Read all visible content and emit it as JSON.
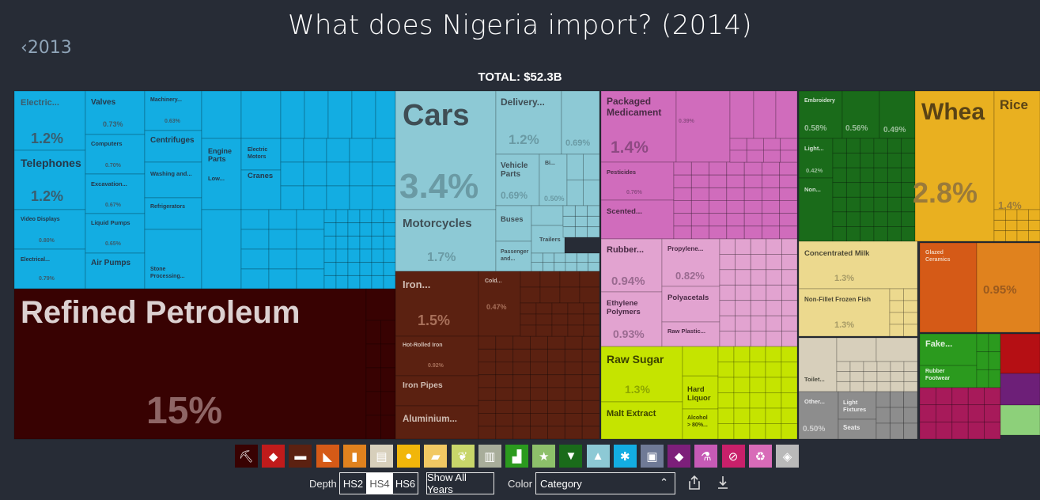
{
  "title": "What does Nigeria import? (2014)",
  "prev_year": "2013",
  "total": "TOTAL: $52.3B",
  "chart_data": {
    "type": "treemap",
    "title": "What does Nigeria import? (2014)",
    "total": "$52.3B",
    "blocks": [
      {
        "name": "Refined Petroleum",
        "share": "15%",
        "color": "#380202"
      },
      {
        "name": "Cars",
        "share": "3.4%",
        "color": "#8dc9d5"
      },
      {
        "name": "Wheat",
        "share": "2.8%",
        "color": "#e9b020"
      },
      {
        "name": "Motorcycles",
        "share": "1.7%",
        "color": "#8dc9d5"
      },
      {
        "name": "Iron Reinforcing Bars",
        "share": "1.5%",
        "color": "#5b2111"
      },
      {
        "name": "Packaged Medicaments",
        "share": "1.4%",
        "color": "#d06cbc"
      },
      {
        "name": "Rice",
        "share": "1.4%",
        "color": "#e9b020"
      },
      {
        "name": "Raw Sugar",
        "share": "1.3%",
        "color": "#c5e400"
      },
      {
        "name": "Concentrated Milk",
        "share": "1.3%",
        "color": "#ecd98e"
      },
      {
        "name": "Non-Fillet Frozen Fish",
        "share": "1.3%",
        "color": "#ecd98e"
      },
      {
        "name": "Electrical Transformers",
        "share": "1.2%",
        "color": "#13ade2"
      },
      {
        "name": "Telephones",
        "share": "1.2%",
        "color": "#13ade2"
      },
      {
        "name": "Delivery Trucks",
        "share": "1.2%",
        "color": "#8dc9d5"
      }
    ],
    "tiles": {
      "electric": {
        "label": "Electric...",
        "value": "1.2%"
      },
      "telephones": {
        "label": "Telephones",
        "value": "1.2%"
      },
      "video_displays": {
        "label": "Video Displays",
        "value": "0.80%"
      },
      "electrical2": {
        "label": "Electrical...",
        "value": "0.79%"
      },
      "valves": {
        "label": "Valves",
        "value": "0.73%"
      },
      "computers": {
        "label": "Computers",
        "value": "0.70%"
      },
      "excavation": {
        "label": "Excavation...",
        "value": "0.67%"
      },
      "liquid_pumps": {
        "label": "Liquid Pumps",
        "value": "0.65%"
      },
      "air_pumps": {
        "label": "Air Pumps"
      },
      "machinery": {
        "label": "Machinery...",
        "value": "0.63%"
      },
      "centrifuges": {
        "label": "Centrifuges"
      },
      "washing": {
        "label": "Washing and..."
      },
      "refrigerators": {
        "label": "Refrigerators"
      },
      "stone": {
        "label": "Stone Processing..."
      },
      "engine_parts": {
        "label": "Engine Parts"
      },
      "low": {
        "label": "Low..."
      },
      "electric_motors": {
        "label": "Electric Motors"
      },
      "cranes": {
        "label": "Cranes"
      },
      "refined_petroleum": {
        "label": "Refined Petroleum",
        "value": "15%"
      },
      "cars": {
        "label": "Cars",
        "value": "3.4%"
      },
      "motorcycles": {
        "label": "Motorcycles",
        "value": "1.7%"
      },
      "delivery": {
        "label": "Delivery...",
        "value": "1.2%"
      },
      "delivery_small": {
        "value": "0.69%"
      },
      "vehicle_parts": {
        "label": "Vehicle Parts",
        "value": "0.69%"
      },
      "bi": {
        "label": "Bi...",
        "value": "0.50%"
      },
      "buses": {
        "label": "Buses"
      },
      "passenger": {
        "label": "Passenger and..."
      },
      "trailers": {
        "label": "Trailers"
      },
      "iron": {
        "label": "Iron...",
        "value": "1.5%"
      },
      "cold": {
        "label": "Cold...",
        "value": "0.47%"
      },
      "hot_rolled": {
        "label": "Hot-Rolled Iron",
        "value": "0.92%"
      },
      "iron_pipes": {
        "label": "Iron Pipes"
      },
      "aluminium": {
        "label": "Aluminium..."
      },
      "packaged_med": {
        "label": "Packaged Medicament",
        "value": "1.4%"
      },
      "pack_small": {
        "value": "0.39%"
      },
      "pesticides": {
        "label": "Pesticides",
        "value": "0.76%"
      },
      "scented": {
        "label": "Scented..."
      },
      "rubber": {
        "label": "Rubber...",
        "value": "0.94%"
      },
      "ethylene": {
        "label": "Ethylene Polymers",
        "value": "0.93%"
      },
      "propylene": {
        "label": "Propylene...",
        "value": "0.82%"
      },
      "polyacetals": {
        "label": "Polyacetals"
      },
      "raw_plastic": {
        "label": "Raw Plastic..."
      },
      "raw_sugar": {
        "label": "Raw Sugar",
        "value": "1.3%"
      },
      "malt_extract": {
        "label": "Malt Extract"
      },
      "hard_liquor": {
        "label": "Hard Liquor"
      },
      "alcohol": {
        "label": "Alcohol > 80%..."
      },
      "embroidery": {
        "label": "Embroidery",
        "value": "0.58%"
      },
      "emb2": {
        "value": "0.56%"
      },
      "emb3": {
        "value": "0.49%"
      },
      "light": {
        "label": "Light...",
        "value": "0.42%"
      },
      "non": {
        "label": "Non..."
      },
      "wheat": {
        "label": "Whea",
        "value": "2.8%"
      },
      "rice": {
        "label": "Rice",
        "value": "1.4%"
      },
      "concentrated_milk": {
        "label": "Concentrated Milk",
        "value": "1.3%"
      },
      "frozen_fish": {
        "label": "Non-Fillet Frozen Fish",
        "value": "1.3%"
      },
      "glazed": {
        "label": "Glazed Ceramics"
      },
      "orange_big": {
        "value": "0.95%"
      },
      "toilet": {
        "label": "Toilet..."
      },
      "other": {
        "label": "Other...",
        "value": "0.50%"
      },
      "light_fixtures": {
        "label": "Light Fixtures"
      },
      "seats": {
        "label": "Seats"
      },
      "fake": {
        "label": "Fake..."
      },
      "rubber_footwear": {
        "label": "Rubber Footwear"
      }
    }
  },
  "categories": [
    {
      "icon": "pickaxe-icon",
      "glyph": "⛏",
      "color": "#380202"
    },
    {
      "icon": "tag-icon",
      "glyph": "◆",
      "color": "#c01b1b"
    },
    {
      "icon": "anvil-icon",
      "glyph": "▬",
      "color": "#5b2111"
    },
    {
      "icon": "ruler-icon",
      "glyph": "◣",
      "color": "#d55a17"
    },
    {
      "icon": "bottle-icon",
      "glyph": "▮",
      "color": "#e0821e"
    },
    {
      "icon": "paper-icon",
      "glyph": "▤",
      "color": "#d7cfbb"
    },
    {
      "icon": "fruit-icon",
      "glyph": "●",
      "color": "#f1b60a"
    },
    {
      "icon": "cow-icon",
      "glyph": "▰",
      "color": "#f1c863"
    },
    {
      "icon": "wheat-icon",
      "glyph": "❦",
      "color": "#c8d66a"
    },
    {
      "icon": "building-icon",
      "glyph": "▥",
      "color": "#a8ad9a"
    },
    {
      "icon": "shoe-icon",
      "glyph": "▟",
      "color": "#2b9a1e"
    },
    {
      "icon": "star-icon",
      "glyph": "★",
      "color": "#8dc06a"
    },
    {
      "icon": "shirt-icon",
      "glyph": "▼",
      "color": "#1a6b1a"
    },
    {
      "icon": "road-icon",
      "glyph": "▲",
      "color": "#8dc9d5"
    },
    {
      "icon": "gear-icon",
      "glyph": "✱",
      "color": "#13ade2"
    },
    {
      "icon": "picture-icon",
      "glyph": "▣",
      "color": "#6f7a96"
    },
    {
      "icon": "gem-icon",
      "glyph": "◆",
      "color": "#7d1f7a"
    },
    {
      "icon": "flask-icon",
      "glyph": "⚗",
      "color": "#c65ab6"
    },
    {
      "icon": "no-sign-icon",
      "glyph": "⊘",
      "color": "#c8206a"
    },
    {
      "icon": "recycle-icon",
      "glyph": "♻",
      "color": "#d86bb8"
    },
    {
      "icon": "box-icon",
      "glyph": "◈",
      "color": "#b9b9b9"
    }
  ],
  "controls": {
    "depth_label": "Depth",
    "depth_options": [
      "HS2",
      "HS4",
      "HS6"
    ],
    "depth_active": "HS4",
    "show_all_years": "Show All Years",
    "color_label": "Color",
    "color_value": "Category"
  }
}
